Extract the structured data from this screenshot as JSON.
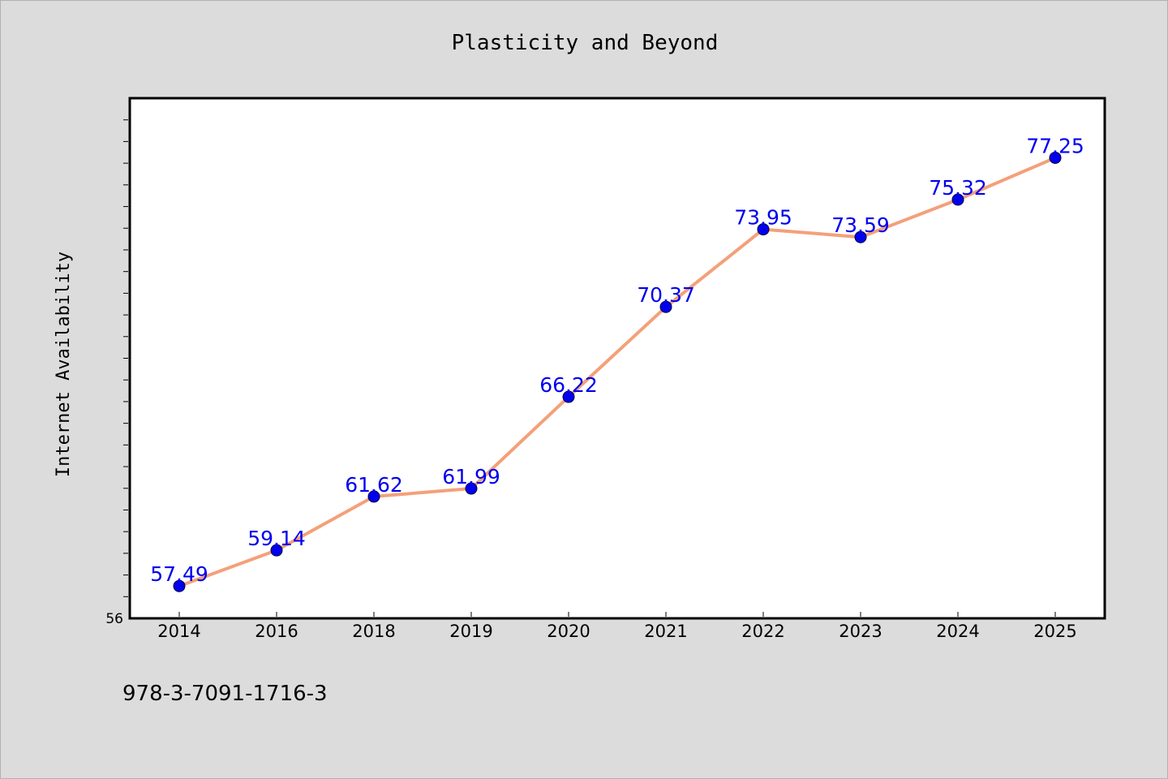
{
  "chart_data": {
    "type": "line",
    "title": "Plasticity and Beyond",
    "xlabel": "",
    "ylabel": "Internet Availability",
    "categories": [
      "2014",
      "2016",
      "2018",
      "2019",
      "2020",
      "2021",
      "2022",
      "2023",
      "2024",
      "2025"
    ],
    "series": [
      {
        "values": [
          57.49,
          59.14,
          61.62,
          61.99,
          66.22,
          70.37,
          73.95,
          73.59,
          75.32,
          77.25
        ],
        "labels": [
          "57.49",
          "59.14",
          "61.62",
          "61.99",
          "66.22",
          "70.37",
          "73.95",
          "73.59",
          "75.32",
          "77.25"
        ],
        "line_color": "#f4a07a",
        "marker_color": "#0000ee",
        "label_color": "#0000ee"
      }
    ],
    "ylim": [
      56,
      80
    ],
    "yticks_labeled": [
      "56"
    ],
    "y_minor_tick_step": 1,
    "grid": false,
    "legend": "none"
  },
  "footer": {
    "isbn": "978-3-7091-1716-3"
  },
  "colors": {
    "background": "#dcdcdc",
    "plot_area": "#ffffff",
    "axis": "#000000"
  }
}
